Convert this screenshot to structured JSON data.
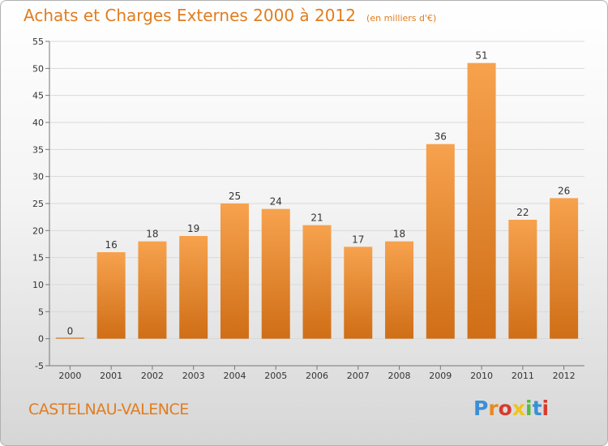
{
  "header": {
    "title": "Achats et Charges Externes 2000 à 2012",
    "unit": "(en milliers d'€)"
  },
  "footer": {
    "commune": "CASTELNAU-VALENCE",
    "logo_letters": [
      "P",
      "r",
      "o",
      "x",
      "i",
      "t",
      "i"
    ],
    "logo_colors": [
      "#3a8fd6",
      "#e8891f",
      "#d83a2e",
      "#f0c419",
      "#57b947",
      "#3a8fd6",
      "#d83a2e"
    ]
  },
  "colors": {
    "accent": "#e07d20",
    "bar_top": "#f7a24e",
    "bar_bottom": "#cf6e16"
  },
  "chart_data": {
    "type": "bar",
    "title": "Achats et Charges Externes 2000 à 2012",
    "xlabel": "",
    "ylabel": "",
    "ylim": [
      -5,
      55
    ],
    "yticks": [
      -5,
      0,
      5,
      10,
      15,
      20,
      25,
      30,
      35,
      40,
      45,
      50,
      55
    ],
    "grid": true,
    "categories": [
      "2000",
      "2001",
      "2002",
      "2003",
      "2004",
      "2005",
      "2006",
      "2007",
      "2008",
      "2009",
      "2010",
      "2011",
      "2012"
    ],
    "values": [
      0,
      16,
      18,
      19,
      25,
      24,
      21,
      17,
      18,
      36,
      51,
      22,
      26
    ]
  }
}
